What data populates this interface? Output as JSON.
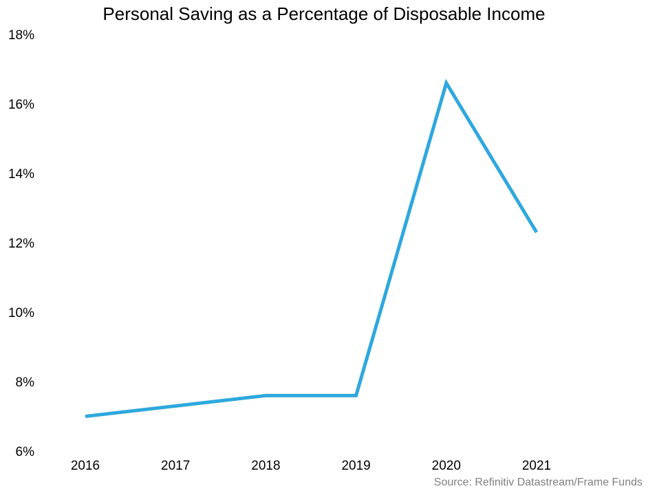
{
  "chart_data": {
    "type": "line",
    "title": "Personal Saving as a Percentage of Disposable Income",
    "xlabel": "",
    "ylabel": "",
    "categories": [
      "2016",
      "2017",
      "2018",
      "2019",
      "2020",
      "2021"
    ],
    "series": [
      {
        "values": [
          7.0,
          7.3,
          7.6,
          7.6,
          16.6,
          12.3
        ],
        "color": "#2ea8dd"
      }
    ],
    "ylim": [
      6,
      18
    ],
    "yticks": [
      6,
      8,
      10,
      12,
      14,
      16,
      18
    ],
    "ytick_labels": [
      "6%",
      "8%",
      "10%",
      "12%",
      "14%",
      "16%",
      "18%"
    ],
    "grid": false,
    "legend": "none"
  },
  "source": "Source: Refinitiv Datastream/Frame Funds"
}
